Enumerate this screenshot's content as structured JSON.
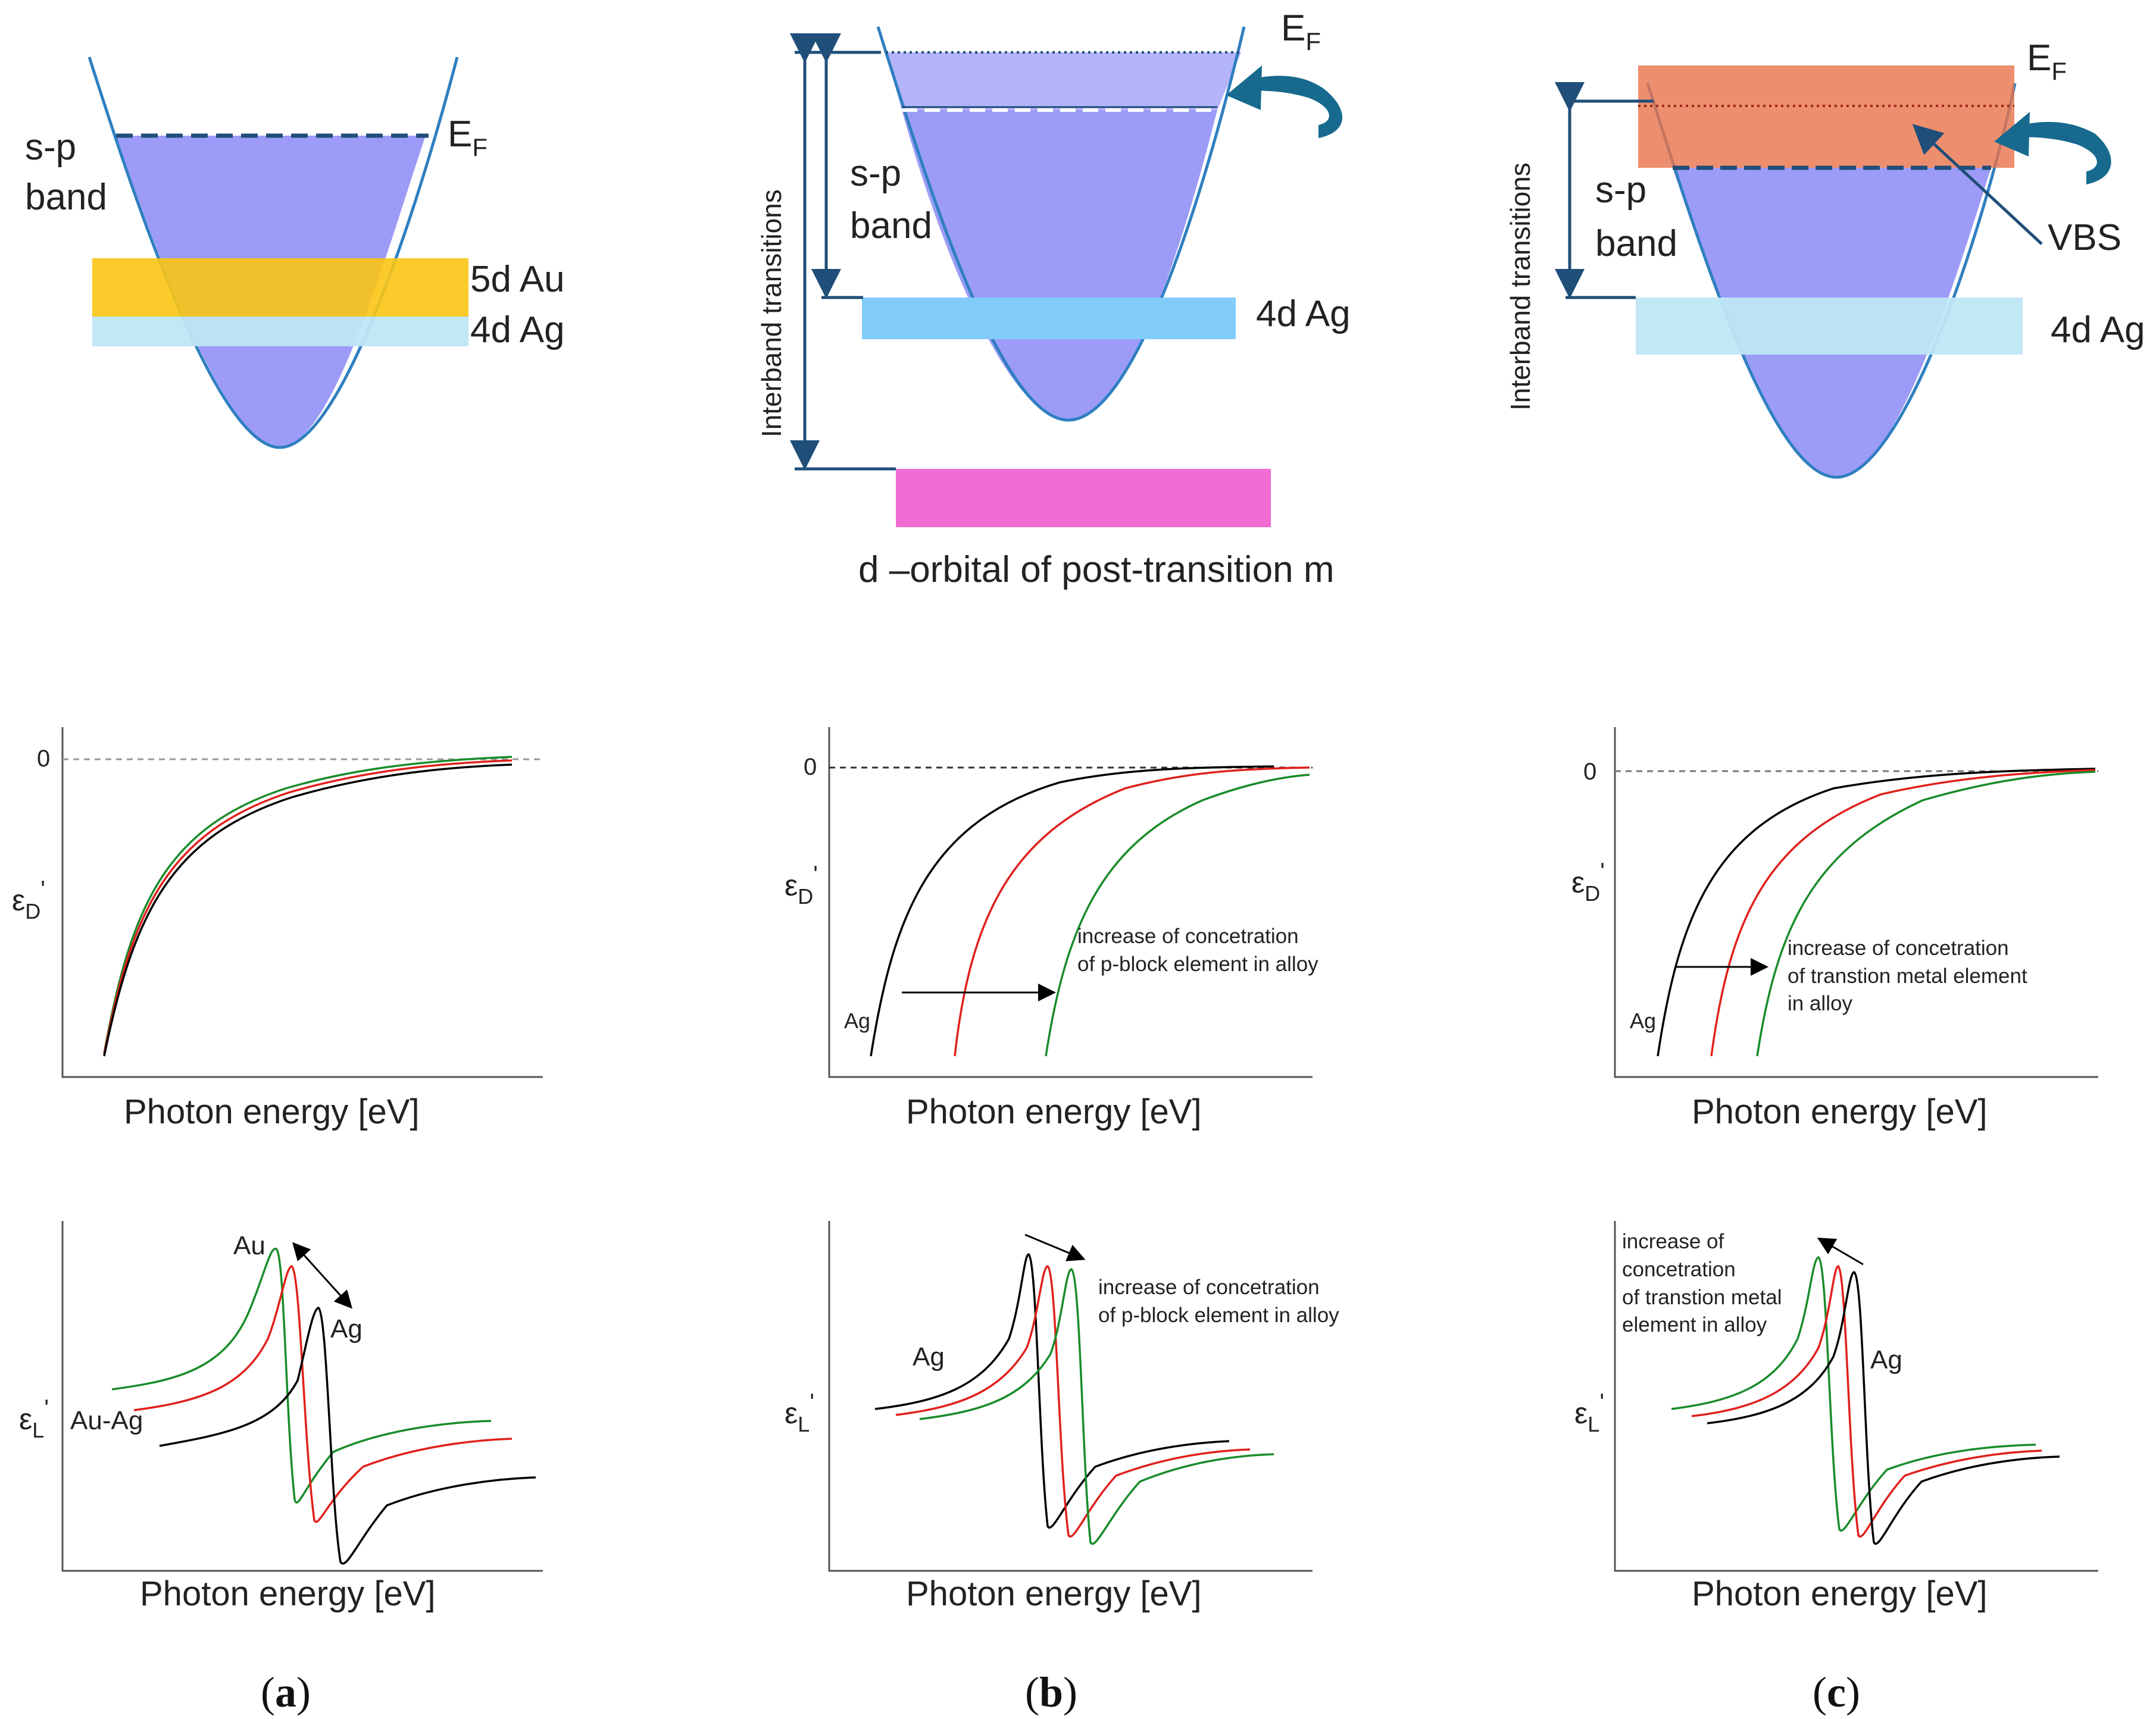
{
  "figure": {
    "band_diagrams": {
      "a": {
        "sp_band_line1": "s-p",
        "sp_band_line2": "band",
        "fermi_main": "E",
        "fermi_sub": "F",
        "d_band_au": "5d Au",
        "d_band_ag": "4d Ag"
      },
      "b": {
        "sp_band_line1": "s-p",
        "sp_band_line2": "band",
        "fermi_main": "E",
        "fermi_sub": "F",
        "d_band_ag": "4d Ag",
        "interband": "Interband transitions",
        "post_transition": "d –orbital of post-transition m"
      },
      "c": {
        "sp_band_line1": "s-p",
        "sp_band_line2": "band",
        "fermi_main": "E",
        "fermi_sub": "F",
        "d_band_ag": "4d Ag",
        "interband": "Interband transitions",
        "vbs": "VBS"
      }
    },
    "drude_plots": {
      "a": {
        "ylabel_main": "ε",
        "ylabel_sub": "D",
        "ylabel_prime": "'",
        "zero": "0",
        "xlabel": "Photon energy [eV]"
      },
      "b": {
        "ylabel_main": "ε",
        "ylabel_sub": "D",
        "ylabel_prime": "'",
        "zero": "0",
        "xlabel": "Photon energy [eV]",
        "ag": "Ag",
        "note_line1": "increase of concetration",
        "note_line2": "of p-block element in alloy"
      },
      "c": {
        "ylabel_main": "ε",
        "ylabel_sub": "D",
        "ylabel_prime": "'",
        "zero": "0",
        "xlabel": "Photon energy [eV]",
        "ag": "Ag",
        "note_line1": "increase of concetration",
        "note_line2": "of transtion metal element",
        "note_line3": "in alloy"
      }
    },
    "lorentz_plots": {
      "a": {
        "ylabel_main": "ε",
        "ylabel_sub": "L",
        "ylabel_prime": "'",
        "xlabel": "Photon energy [eV]",
        "au": "Au",
        "ag": "Ag",
        "auag": "Au-Ag"
      },
      "b": {
        "ylabel_main": "ε",
        "ylabel_sub": "L",
        "ylabel_prime": "'",
        "xlabel": "Photon energy [eV]",
        "ag": "Ag",
        "note_line1": "increase of concetration",
        "note_line2": "of p-block element in alloy"
      },
      "c": {
        "ylabel_main": "ε",
        "ylabel_sub": "L",
        "ylabel_prime": "'",
        "xlabel": "Photon energy [eV]",
        "ag": "Ag",
        "note_line1": "increase of",
        "note_line2": "concetration",
        "note_line3": "of transtion metal",
        "note_line4": "element in alloy"
      }
    },
    "captions": {
      "a": {
        "open": "(",
        "letter": "a",
        "close": ")"
      },
      "b": {
        "open": "(",
        "letter": "b",
        "close": ")"
      },
      "c": {
        "open": "(",
        "letter": "c",
        "close": ")"
      }
    },
    "colors": {
      "sp_band": "#9c9cf8",
      "band_outline": "#2f7fc0",
      "fermi_line": "#1f4e79",
      "au_band": "#fbc515",
      "ag_band_light": "#bfe6f4",
      "ag_band_b": "#82ccfa",
      "post_transition_band": "#f06bd2",
      "vbs_band": "#e8734a",
      "arrow": "#176a8e",
      "curve_black": "#000000",
      "curve_red": "#e0201c",
      "curve_green": "#198c2a"
    }
  }
}
